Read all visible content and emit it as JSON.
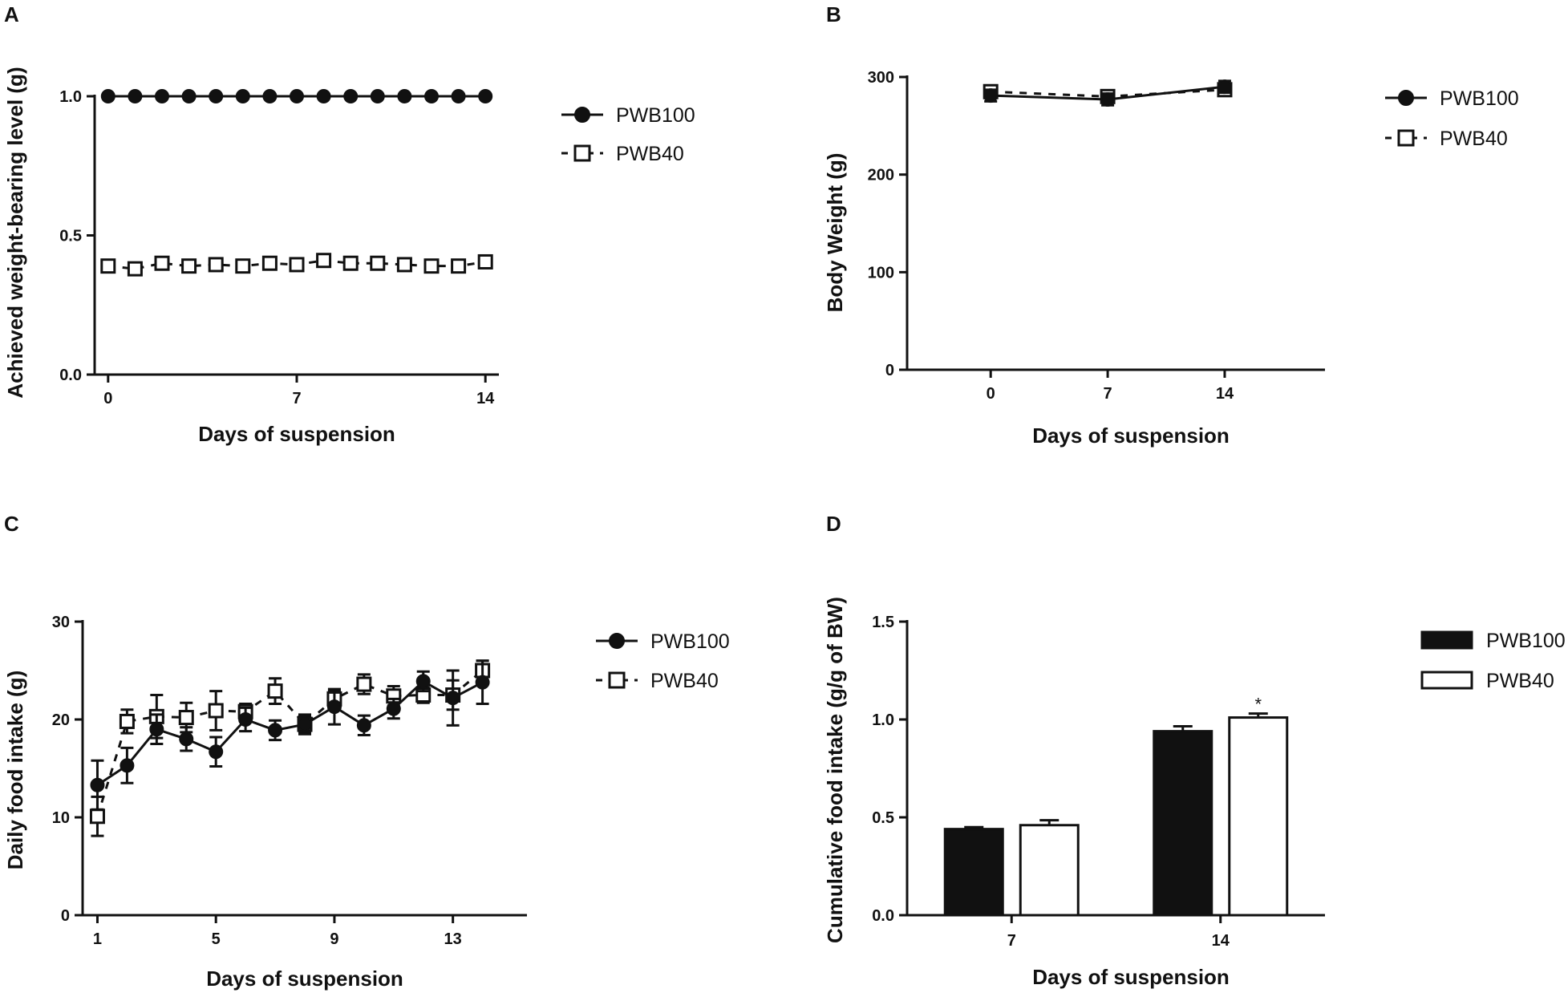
{
  "chart_data": [
    {
      "panel": "A",
      "type": "line",
      "xlabel": "Days of suspension",
      "ylabel": "Achieved weight-bearing level (g)",
      "xlim": [
        -0.5,
        14.5
      ],
      "ylim": [
        0,
        1.0
      ],
      "xticks": [
        0,
        7,
        14
      ],
      "yticks": [
        0.0,
        0.5,
        1.0
      ],
      "ytick_labels": [
        "0.0",
        "0.5",
        "1.0"
      ],
      "series": [
        {
          "name": "PWB100",
          "marker": "filled-circle",
          "dashed": false,
          "x": [
            0,
            1,
            2,
            3,
            4,
            5,
            6,
            7,
            8,
            9,
            10,
            11,
            12,
            13,
            14
          ],
          "y": [
            1.0,
            1.0,
            1.0,
            1.0,
            1.0,
            1.0,
            1.0,
            1.0,
            1.0,
            1.0,
            1.0,
            1.0,
            1.0,
            1.0,
            1.0
          ]
        },
        {
          "name": "PWB40",
          "marker": "open-square",
          "dashed": true,
          "x": [
            0,
            1,
            2,
            3,
            4,
            5,
            6,
            7,
            8,
            9,
            10,
            11,
            12,
            13,
            14
          ],
          "y": [
            0.39,
            0.38,
            0.4,
            0.39,
            0.395,
            0.39,
            0.4,
            0.395,
            0.41,
            0.4,
            0.4,
            0.395,
            0.39,
            0.39,
            0.405
          ]
        }
      ]
    },
    {
      "panel": "B",
      "type": "line",
      "xlabel": "Days of suspension",
      "ylabel": "Body Weight (g)",
      "xlim": [
        -5,
        20
      ],
      "ylim": [
        0,
        300
      ],
      "xticks": [
        0,
        7,
        14
      ],
      "yticks": [
        0,
        100,
        200,
        300
      ],
      "ytick_labels": [
        "0",
        "100",
        "200",
        "300"
      ],
      "series": [
        {
          "name": "PWB100",
          "marker": "filled-circle",
          "dashed": false,
          "x": [
            0,
            7,
            14
          ],
          "y": [
            281,
            277,
            290
          ],
          "err": [
            6,
            6,
            6
          ]
        },
        {
          "name": "PWB40",
          "marker": "open-square",
          "dashed": true,
          "x": [
            0,
            7,
            14
          ],
          "y": [
            285,
            280,
            287
          ],
          "err": [
            6,
            6,
            6
          ]
        }
      ]
    },
    {
      "panel": "C",
      "type": "line",
      "xlabel": "Days of suspension",
      "ylabel": "Daily food intake (g)",
      "xlim": [
        0.5,
        15.5
      ],
      "ylim": [
        0,
        30
      ],
      "xticks": [
        1,
        5,
        9,
        13
      ],
      "yticks": [
        0,
        10,
        20,
        30
      ],
      "ytick_labels": [
        "0",
        "10",
        "20",
        "30"
      ],
      "series": [
        {
          "name": "PWB100",
          "marker": "filled-circle",
          "dashed": false,
          "x": [
            1,
            2,
            3,
            4,
            5,
            6,
            7,
            8,
            9,
            10,
            11,
            12,
            13,
            14
          ],
          "y": [
            13.3,
            15.3,
            19.0,
            18.0,
            16.7,
            20.0,
            18.9,
            19.5,
            21.3,
            19.4,
            21.1,
            23.9,
            22.2,
            23.8
          ],
          "err": [
            2.5,
            1.8,
            1.5,
            1.2,
            1.5,
            1.2,
            1.0,
            1.0,
            1.8,
            1.0,
            1.0,
            1.0,
            2.8,
            2.2
          ]
        },
        {
          "name": "PWB40",
          "marker": "open-square",
          "dashed": true,
          "x": [
            1,
            2,
            3,
            4,
            5,
            6,
            7,
            8,
            9,
            10,
            11,
            12,
            13,
            14
          ],
          "y": [
            10.1,
            19.8,
            20.3,
            20.2,
            20.9,
            20.8,
            22.9,
            19.5,
            22.1,
            23.6,
            22.4,
            22.5,
            22.5,
            25.0
          ],
          "err": [
            2.0,
            1.2,
            2.2,
            1.5,
            2.0,
            0.8,
            1.3,
            0.8,
            0.8,
            1.0,
            1.0,
            0.8,
            1.5,
            1.0
          ]
        }
      ]
    },
    {
      "panel": "D",
      "type": "bar",
      "xlabel": "Days of suspension",
      "ylabel": "Cumulative food intake (g/g of BW)",
      "categories": [
        "7",
        "14"
      ],
      "ylim": [
        0,
        1.5
      ],
      "yticks": [
        0.0,
        0.5,
        1.0,
        1.5
      ],
      "ytick_labels": [
        "0.0",
        "0.5",
        "1.0",
        "1.5"
      ],
      "series": [
        {
          "name": "PWB100",
          "fill": "black",
          "values": [
            0.44,
            0.94
          ],
          "err": [
            0.01,
            0.025
          ]
        },
        {
          "name": "PWB40",
          "fill": "white",
          "values": [
            0.46,
            1.01
          ],
          "err": [
            0.025,
            0.02
          ]
        }
      ],
      "annotations": [
        {
          "category": "14",
          "series": "PWB40",
          "text": "*"
        }
      ]
    }
  ]
}
